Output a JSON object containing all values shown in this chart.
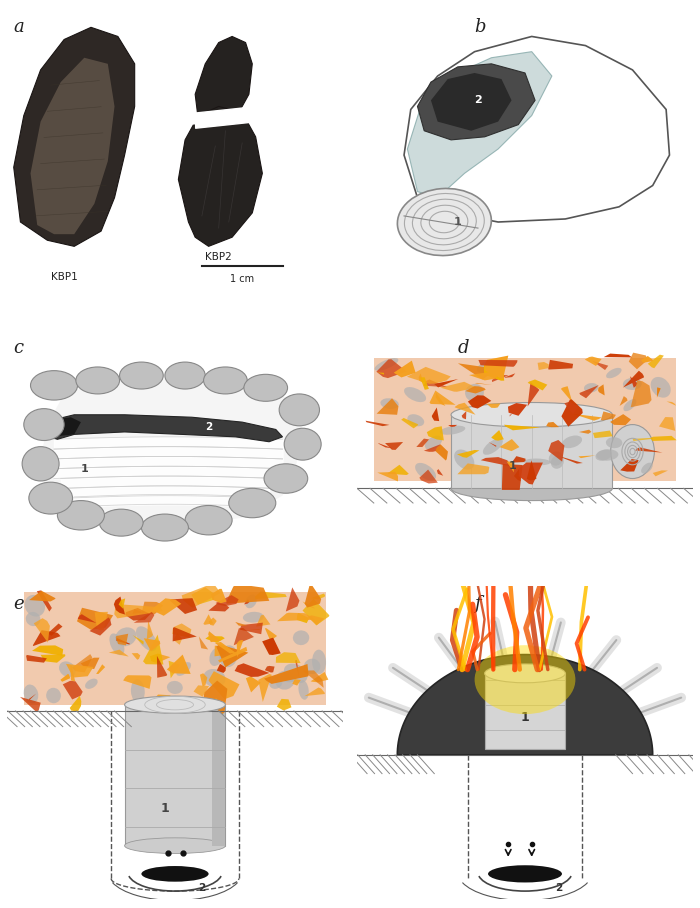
{
  "background_color": "#ffffff",
  "label_color": "#222222",
  "panel_label_fontsize": 13,
  "stone_fill": "#c0c0c0",
  "stone_edge": "#888888",
  "stone_dark_fill": "#aaaaaa",
  "tar_dark": "#383838",
  "tar_darker": "#252525",
  "bark_white": "#f0f0f0",
  "bark_gray": "#d8d8d8",
  "bark_light": "#e8e8e8",
  "cyl_fill": "#cccccc",
  "cyl_shadow": "#aaaaaa",
  "fire_orange": "#f5a020",
  "fire_orange2": "#e88010",
  "fire_red": "#d04010",
  "fire_pink": "#e8a080",
  "fire_gray": "#b0b0b0",
  "fire_yellow": "#ffd000",
  "ground_hatch": "#888888",
  "dashed_line": "#555555",
  "bowl_color": "#444444",
  "drop_color": "#111111",
  "flame_red": "#e83020",
  "flame_orange": "#f06010",
  "flame_yellow": "#ffc000",
  "light_blue_gray": "#c5d5d5",
  "condensation_gray": "#a0a0a0",
  "scale_bar_label": "1 cm",
  "kbp1_label": "KBP1",
  "kbp2_label": "KBP2"
}
